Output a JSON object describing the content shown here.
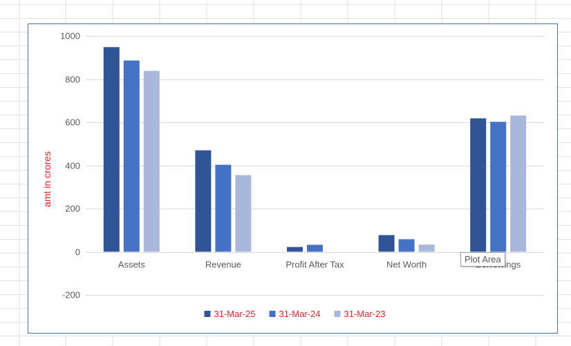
{
  "chart_data": {
    "type": "bar",
    "title": "",
    "xlabel": "",
    "ylabel": "amt in crores",
    "categories": [
      "Assets",
      "Revenue",
      "Profit After Tax",
      "Net Worth",
      "Borrowings"
    ],
    "series": [
      {
        "name": "31-Mar-25",
        "color": "#2f5597",
        "values": [
          948,
          470,
          22,
          77,
          618
        ]
      },
      {
        "name": "31-Mar-24",
        "color": "#4472c4",
        "values": [
          886,
          403,
          32,
          58,
          602
        ]
      },
      {
        "name": "31-Mar-23",
        "color": "#a9b7dc",
        "values": [
          838,
          355,
          0,
          33,
          631
        ]
      }
    ],
    "ylim": [
      -200,
      1000
    ],
    "yticks": [
      -200,
      0,
      200,
      400,
      600,
      800,
      1000
    ],
    "grid": true,
    "legend_position": "bottom"
  },
  "tooltip": {
    "text": "Plot Area"
  },
  "colors": {
    "ylabel": "#e8202a",
    "legend_text": "#e8202a",
    "gridline": "#d9d9d9",
    "frame_border": "#4a6fa5"
  }
}
